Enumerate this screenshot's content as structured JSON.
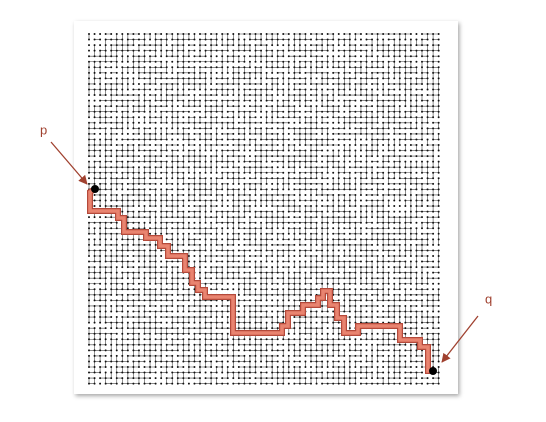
{
  "labels": {
    "p": "p",
    "q": "q"
  }
}
